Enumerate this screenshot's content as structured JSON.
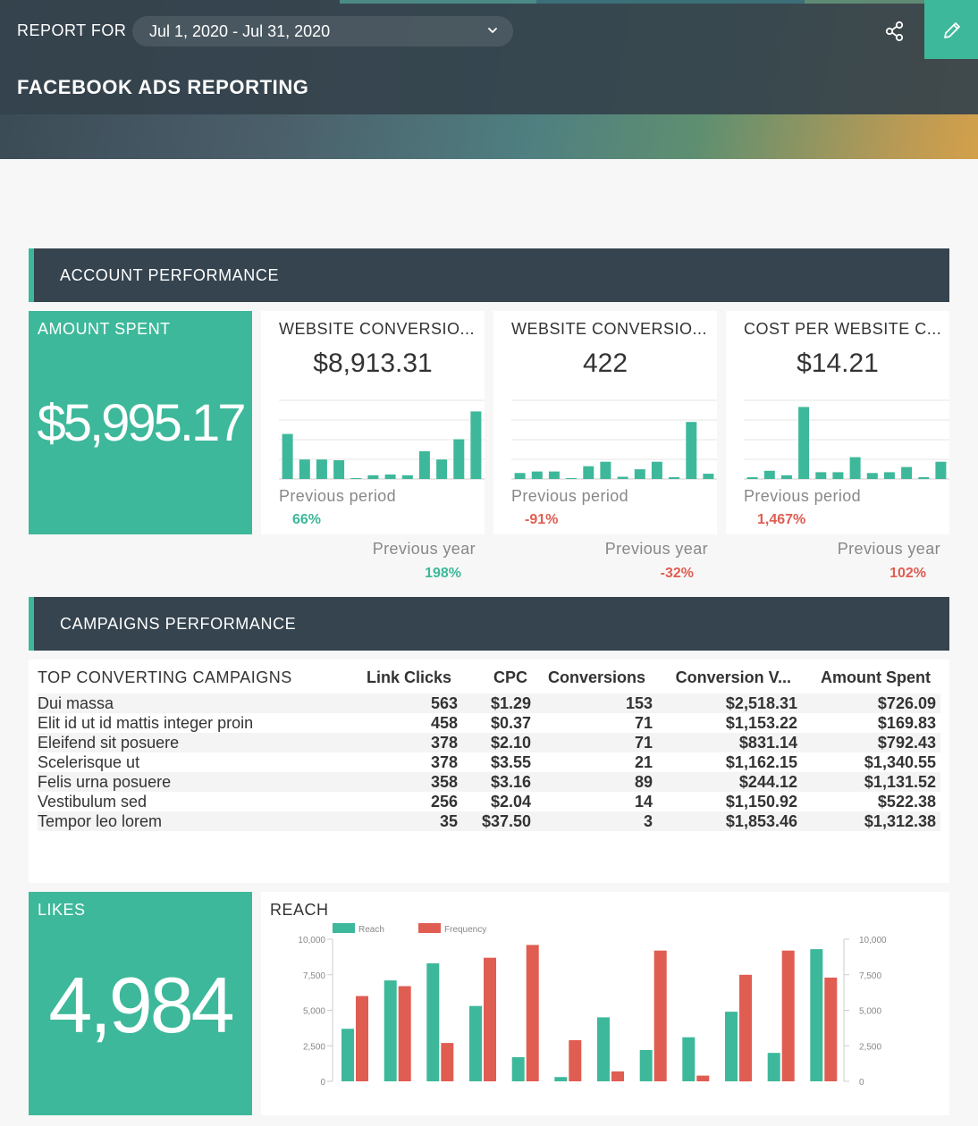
{
  "header": {
    "report_for_label": "REPORT FOR",
    "date_range": "Jul 1, 2020 - Jul 31, 2020",
    "title": "FACEBOOK ADS REPORTING",
    "icons": {
      "share": "share-icon",
      "edit": "pencil-icon",
      "dropdown": "chevron-down-icon"
    }
  },
  "sections": {
    "account": "ACCOUNT PERFORMANCE",
    "campaigns": "CAMPAIGNS PERFORMANCE"
  },
  "amount_spent": {
    "title": "AMOUNT SPENT",
    "value": "$5,995.17"
  },
  "cards": [
    {
      "title": "WEBSITE CONVERSIO...",
      "value": "$8,913.31",
      "previous_period_label": "Previous period",
      "previous_period": "66%",
      "previous_period_trend": "positive",
      "previous_year_label": "Previous year",
      "previous_year": "198%",
      "previous_year_trend": "positive",
      "bars": [
        0.6,
        0.26,
        0.26,
        0.25,
        0,
        0.05,
        0.06,
        0.05,
        0.37,
        0.26,
        0.53,
        0.9
      ]
    },
    {
      "title": "WEBSITE CONVERSIO...",
      "value": "422",
      "previous_period_label": "Previous period",
      "previous_period": "-91%",
      "previous_period_trend": "negative",
      "previous_year_label": "Previous year",
      "previous_year": "-32%",
      "previous_year_trend": "negative",
      "bars": [
        0.08,
        0.1,
        0.1,
        0,
        0.17,
        0.23,
        0.03,
        0.13,
        0.23,
        0.02,
        0.76,
        0.07
      ]
    },
    {
      "title": "COST PER WEBSITE C...",
      "value": "$14.21",
      "previous_period_label": "Previous period",
      "previous_period": "1,467%",
      "previous_period_trend": "negative",
      "previous_year_label": "Previous year",
      "previous_year": "102%",
      "previous_year_trend": "negative",
      "bars": [
        0.02,
        0.11,
        0.05,
        0.96,
        0.09,
        0.09,
        0.29,
        0.08,
        0.09,
        0.16,
        0.02,
        0.23
      ]
    }
  ],
  "table": {
    "title": "TOP CONVERTING CAMPAIGNS",
    "columns": [
      "Link Clicks",
      "CPC",
      "Conversions",
      "Conversion V...",
      "Amount Spent"
    ],
    "rows": [
      [
        "Dui massa",
        "563",
        "$1.29",
        "153",
        "$2,518.31",
        "$726.09"
      ],
      [
        "Elit id ut id mattis integer proin",
        "458",
        "$0.37",
        "71",
        "$1,153.22",
        "$169.83"
      ],
      [
        "Eleifend sit posuere",
        "378",
        "$2.10",
        "71",
        "$831.14",
        "$792.43"
      ],
      [
        "Scelerisque ut",
        "378",
        "$3.55",
        "21",
        "$1,162.15",
        "$1,340.55"
      ],
      [
        "Felis urna posuere",
        "358",
        "$3.16",
        "89",
        "$244.12",
        "$1,131.52"
      ],
      [
        "Vestibulum sed",
        "256",
        "$2.04",
        "14",
        "$1,150.92",
        "$522.38"
      ],
      [
        "Tempor leo lorem",
        "35",
        "$37.50",
        "3",
        "$1,853.46",
        "$1,312.38"
      ]
    ]
  },
  "likes": {
    "title": "LIKES",
    "value": "4,984"
  },
  "chart_data": {
    "type": "bar",
    "title": "REACH",
    "series": [
      {
        "name": "Reach",
        "color": "#3db89a",
        "values": [
          3700,
          7100,
          8300,
          5300,
          1700,
          300,
          4500,
          2200,
          3100,
          4900,
          2000,
          9300
        ]
      },
      {
        "name": "Frequency",
        "color": "#e05d52",
        "values": [
          6000,
          6700,
          2700,
          8700,
          9600,
          2900,
          700,
          9200,
          400,
          7500,
          9200,
          7300
        ]
      }
    ],
    "ylim": [
      0,
      10000
    ],
    "yticks": [
      "0",
      "2,500",
      "5,000",
      "7,500",
      "10,000"
    ],
    "grid": true,
    "legend_position": "top-left"
  }
}
